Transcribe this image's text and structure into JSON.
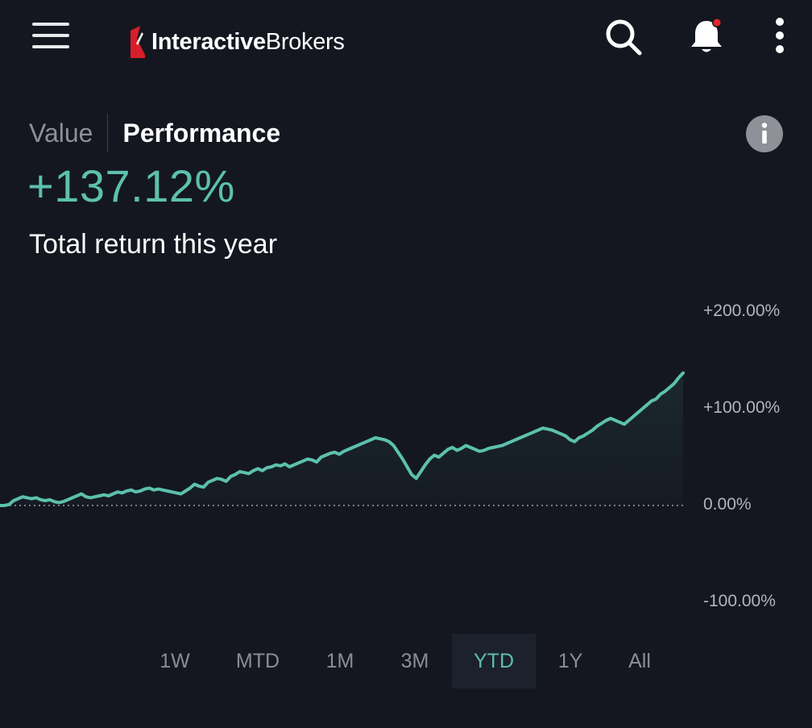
{
  "header": {
    "menu_icon": "hamburger-menu-icon",
    "logo_bold": "Interactive",
    "logo_light": "Brokers",
    "search_icon": "search-icon",
    "notifications_icon": "bell-icon",
    "more_icon": "more-vertical-icon"
  },
  "tabs": {
    "value_label": "Value",
    "performance_label": "Performance",
    "active": "Performance"
  },
  "info_icon": "info-icon",
  "headline": {
    "value": "+137.12%",
    "label": "Total return this year"
  },
  "colors": {
    "accent": "#5cc1ac",
    "background": "#141720",
    "notification_dot": "#e0262e",
    "logo_red": "#d81e2b"
  },
  "chart_data": {
    "type": "area",
    "y_unit": "%",
    "ylim": [
      -100,
      200
    ],
    "yticks": [
      {
        "value": 200,
        "label": "+200.00%"
      },
      {
        "value": 100,
        "label": "+100.00%"
      },
      {
        "value": 0,
        "label": "0.00%"
      },
      {
        "value": -100,
        "label": "-100.00%"
      }
    ],
    "baseline": 0,
    "series": [
      {
        "values": [
          0,
          0,
          1,
          5,
          7,
          9,
          8,
          7,
          8,
          6,
          5,
          6,
          4,
          3,
          4,
          6,
          8,
          10,
          12,
          9,
          8,
          9,
          10,
          11,
          10,
          12,
          14,
          13,
          15,
          16,
          14,
          15,
          17,
          18,
          16,
          17,
          16,
          15,
          14,
          13,
          12,
          15,
          18,
          22,
          20,
          19,
          24,
          26,
          28,
          27,
          25,
          30,
          32,
          35,
          34,
          33,
          36,
          38,
          36,
          39,
          40,
          42,
          41,
          43,
          40,
          42,
          44,
          46,
          48,
          47,
          45,
          50,
          52,
          54,
          55,
          53,
          56,
          58,
          60,
          62,
          64,
          66,
          68,
          70,
          69,
          68,
          66,
          62,
          55,
          48,
          40,
          32,
          28,
          35,
          42,
          48,
          52,
          50,
          54,
          58,
          60,
          57,
          59,
          62,
          60,
          58,
          56,
          57,
          59,
          60,
          61,
          62,
          64,
          66,
          68,
          70,
          72,
          74,
          76,
          78,
          80,
          79,
          78,
          76,
          74,
          72,
          68,
          66,
          70,
          72,
          75,
          78,
          82,
          85,
          88,
          90,
          88,
          86,
          84,
          88,
          92,
          96,
          100,
          104,
          108,
          110,
          115,
          118,
          122,
          126,
          132,
          137
        ]
      }
    ],
    "grid": false,
    "legend": "none"
  },
  "ranges": {
    "items": [
      "1W",
      "MTD",
      "1M",
      "3M",
      "YTD",
      "1Y",
      "All"
    ],
    "active": "YTD"
  }
}
